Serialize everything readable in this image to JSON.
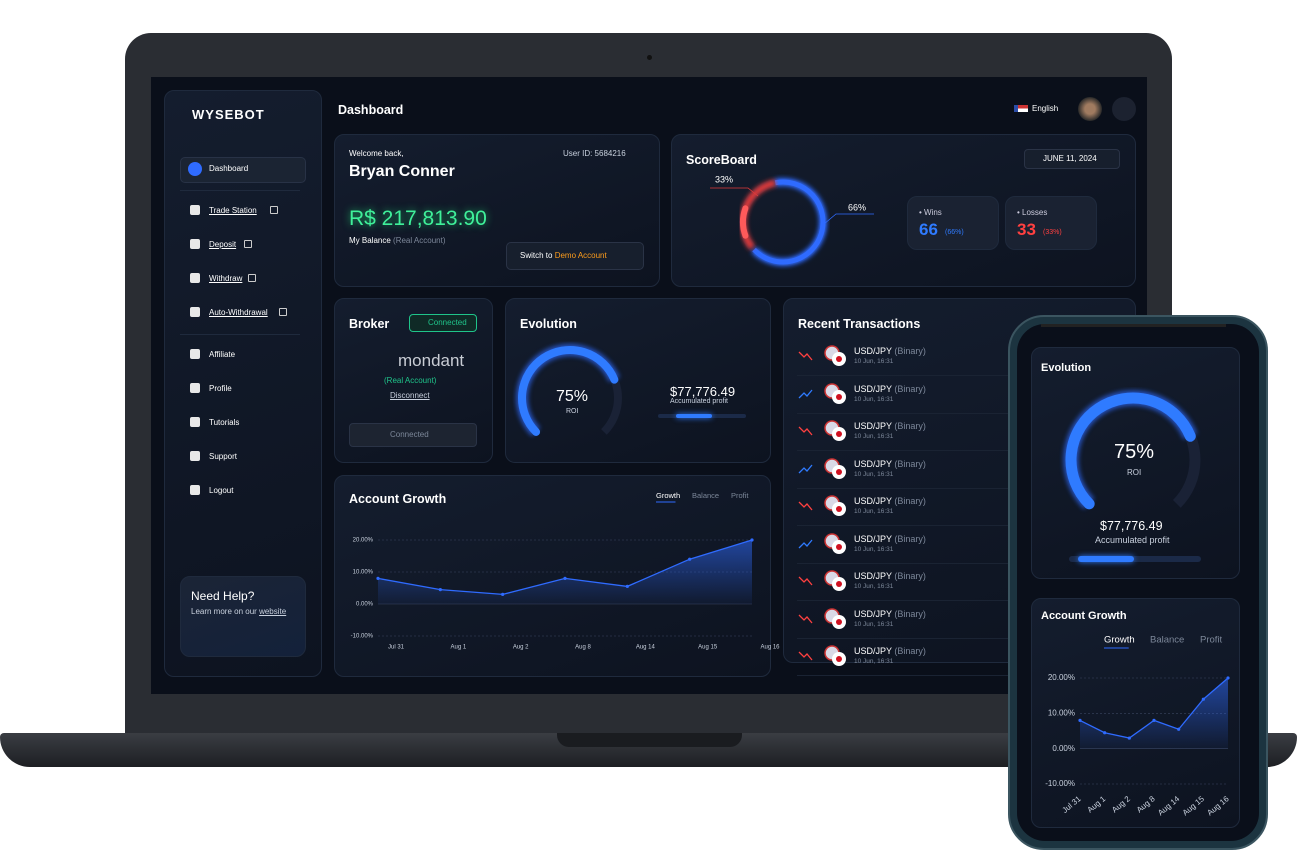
{
  "brand": "WYSEBOT",
  "header": {
    "title": "Dashboard",
    "language": "English"
  },
  "sidebar": {
    "items": [
      {
        "label": "Dashboard",
        "active": true,
        "external": false
      },
      {
        "label": "Trade Station",
        "active": false,
        "external": true
      },
      {
        "label": "Deposit",
        "active": false,
        "external": true
      },
      {
        "label": "Withdraw",
        "active": false,
        "external": true
      },
      {
        "label": "Auto-Withdrawal",
        "active": false,
        "external": true
      },
      {
        "label": "Affiliate",
        "active": false,
        "external": false
      },
      {
        "label": "Profile",
        "active": false,
        "external": false
      },
      {
        "label": "Tutorials",
        "active": false,
        "external": false
      },
      {
        "label": "Support",
        "active": false,
        "external": false
      },
      {
        "label": "Logout",
        "active": false,
        "external": false
      }
    ],
    "help": {
      "title": "Need Help?",
      "text": "Learn more on our",
      "link": "website"
    }
  },
  "welcome": {
    "greeting": "Welcome back,",
    "name": "Bryan Conner",
    "user_id": "User ID: 5684216",
    "balance": "R$ 217,813.90",
    "balance_label": "My Balance",
    "balance_note": "(Real Account)",
    "switch": "Switch to",
    "switch_link": "Demo Account"
  },
  "scoreboard": {
    "title": "ScoreBoard",
    "date": "JUNE 11, 2024",
    "donut_labels": [
      "33%",
      "66%"
    ],
    "wins": {
      "label": "Wins",
      "value": 66,
      "share_label": "(66%)"
    },
    "losses": {
      "label": "Losses",
      "value": 33,
      "share_label": "(33%)"
    }
  },
  "broker": {
    "title": "Broker",
    "status": "Connected",
    "name": "mondant",
    "account": "(Real Account)",
    "disconnect": "Disconnect",
    "button": "Connected"
  },
  "evolution": {
    "title": "Evolution",
    "roi": 75,
    "roi_label": "75%",
    "roi_caption": "ROI",
    "profit": "$77,776.49",
    "profit_caption": "Accumulated profit",
    "profit_caption_short": "Accumulated profit"
  },
  "account_growth": {
    "type": "line",
    "title": "Account Growth",
    "tabs": [
      "Growth",
      "Balance",
      "Profit"
    ],
    "categories": [
      "Jul 31",
      "Aug 1",
      "Aug 2",
      "Aug 8",
      "Aug 14",
      "Aug 15",
      "Aug 16"
    ],
    "values": [
      8,
      4.5,
      3,
      8,
      5.5,
      14,
      20
    ],
    "color": "#2f6bff",
    "ylim": [
      -10,
      20
    ],
    "yticks": [
      {
        "value": -10,
        "label": "-10.00%"
      },
      {
        "value": 0,
        "label": "0.00%"
      },
      {
        "value": 10,
        "label": "10.00%"
      },
      {
        "value": 20,
        "label": "20.00%"
      }
    ]
  },
  "transactions": {
    "title": "Recent Transactions",
    "rows": [
      {
        "pair": "USD/JPY",
        "kind": "(Binary)",
        "time": "10 Jun, 16:31",
        "direction": "down"
      },
      {
        "pair": "USD/JPY",
        "kind": "(Binary)",
        "time": "10 Jun, 16:31",
        "direction": "up"
      },
      {
        "pair": "USD/JPY",
        "kind": "(Binary)",
        "time": "10 Jun, 16:31",
        "direction": "down"
      },
      {
        "pair": "USD/JPY",
        "kind": "(Binary)",
        "time": "10 Jun, 16:31",
        "direction": "up"
      },
      {
        "pair": "USD/JPY",
        "kind": "(Binary)",
        "time": "10 Jun, 16:31",
        "direction": "down"
      },
      {
        "pair": "USD/JPY",
        "kind": "(Binary)",
        "time": "10 Jun, 16:31",
        "direction": "up"
      },
      {
        "pair": "USD/JPY",
        "kind": "(Binary)",
        "time": "10 Jun, 16:31",
        "direction": "down"
      },
      {
        "pair": "USD/JPY",
        "kind": "(Binary)",
        "time": "10 Jun, 16:31",
        "direction": "down"
      },
      {
        "pair": "USD/JPY",
        "kind": "(Binary)",
        "time": "10 Jun, 16:31",
        "direction": "down"
      }
    ]
  }
}
